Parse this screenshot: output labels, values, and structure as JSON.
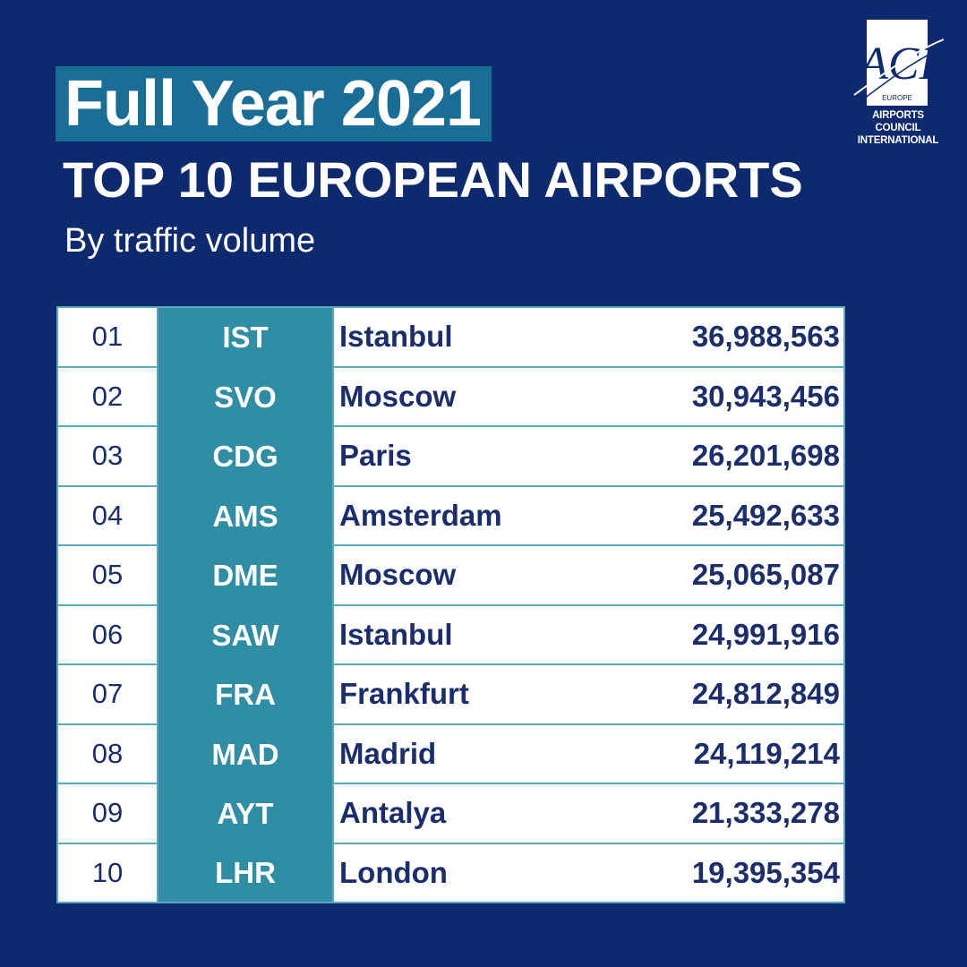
{
  "header": {
    "headline": "Full Year 2021",
    "title": "TOP 10 EUROPEAN AIRPORTS",
    "subtitle": "By traffic volume"
  },
  "logo": {
    "mark": "ACI",
    "region": "EUROPE",
    "org_line1": "AIRPORTS COUNCIL",
    "org_line2": "INTERNATIONAL"
  },
  "colors": {
    "background": "#0d2a6e",
    "headline_bg": "#1a6d94",
    "code_column": "#2f8da4",
    "grid_lines": "#5aa9bf",
    "text_dark": "#1b2d6b"
  },
  "chart_data": {
    "type": "table",
    "title": "TOP 10 EUROPEAN AIRPORTS",
    "subtitle": "By traffic volume",
    "rows": [
      {
        "rank": "01",
        "code": "IST",
        "city": "Istanbul",
        "passengers": "36,988,563"
      },
      {
        "rank": "02",
        "code": "SVO",
        "city": "Moscow",
        "passengers": "30,943,456"
      },
      {
        "rank": "03",
        "code": "CDG",
        "city": "Paris",
        "passengers": "26,201,698"
      },
      {
        "rank": "04",
        "code": "AMS",
        "city": "Amsterdam",
        "passengers": "25,492,633"
      },
      {
        "rank": "05",
        "code": "DME",
        "city": "Moscow",
        "passengers": "25,065,087"
      },
      {
        "rank": "06",
        "code": "SAW",
        "city": "Istanbul",
        "passengers": "24,991,916"
      },
      {
        "rank": "07",
        "code": "FRA",
        "city": "Frankfurt",
        "passengers": "24,812,849"
      },
      {
        "rank": "08",
        "code": "MAD",
        "city": "Madrid",
        "passengers": "24,119,214"
      },
      {
        "rank": "09",
        "code": "AYT",
        "city": "Antalya",
        "passengers": "21,333,278"
      },
      {
        "rank": "10",
        "code": "LHR",
        "city": "London",
        "passengers": "19,395,354"
      }
    ]
  }
}
